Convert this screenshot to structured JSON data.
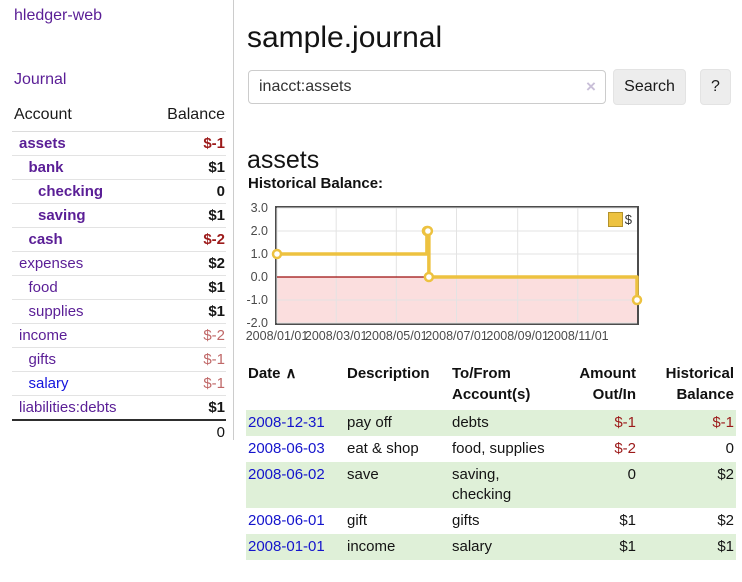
{
  "sidebar": {
    "brand": "hledger-web",
    "nav": {
      "journal": "Journal"
    },
    "accounts_table": {
      "headers": [
        "Account",
        "Balance"
      ],
      "rows": [
        {
          "account": "assets",
          "indent": 0,
          "bold": true,
          "color": "purple",
          "balance": "$-1",
          "balance_class": "neg-strong"
        },
        {
          "account": "bank",
          "indent": 1,
          "bold": true,
          "color": "purple",
          "balance": "$1",
          "balance_class": "pos"
        },
        {
          "account": "checking",
          "indent": 2,
          "bold": true,
          "color": "purple",
          "balance": "0",
          "balance_class": "pos"
        },
        {
          "account": "saving",
          "indent": 2,
          "bold": true,
          "color": "purple",
          "balance": "$1",
          "balance_class": "pos"
        },
        {
          "account": "cash",
          "indent": 1,
          "bold": true,
          "color": "purple",
          "balance": "$-2",
          "balance_class": "neg-strong"
        },
        {
          "account": "expenses",
          "indent": 0,
          "bold": false,
          "color": "purple",
          "balance": "$2",
          "balance_class": "pos"
        },
        {
          "account": "food",
          "indent": 1,
          "bold": false,
          "color": "purple",
          "balance": "$1",
          "balance_class": "pos"
        },
        {
          "account": "supplies",
          "indent": 1,
          "bold": false,
          "color": "purple",
          "balance": "$1",
          "balance_class": "pos"
        },
        {
          "account": "income",
          "indent": 0,
          "bold": false,
          "color": "purple",
          "balance": "$-2",
          "balance_class": "neg-soft"
        },
        {
          "account": "gifts",
          "indent": 1,
          "bold": false,
          "color": "purple",
          "balance": "$-1",
          "balance_class": "neg-soft"
        },
        {
          "account": "salary",
          "indent": 1,
          "bold": false,
          "color": "blue",
          "balance": "$-1",
          "balance_class": "neg-soft"
        },
        {
          "account": "liabilities:debts",
          "indent": 0,
          "bold": false,
          "color": "purple",
          "balance": "$1",
          "balance_class": "pos"
        }
      ],
      "total": "0"
    }
  },
  "header": {
    "title": "sample.journal"
  },
  "search": {
    "value": "inacct:assets",
    "clear_icon": "×",
    "button_label": "Search",
    "help_label": "?"
  },
  "account_page": {
    "heading": "assets",
    "section_label": "Historical Balance:"
  },
  "chart_data": {
    "type": "line",
    "step": true,
    "title": "Historical Balance:",
    "series": [
      {
        "name": "$",
        "points": [
          {
            "date": "2008-01-01",
            "value": 1
          },
          {
            "date": "2008-06-01",
            "value": 2
          },
          {
            "date": "2008-06-02",
            "value": 2
          },
          {
            "date": "2008-06-03",
            "value": 0
          },
          {
            "date": "2008-12-31",
            "value": -1
          }
        ]
      }
    ],
    "xrange": [
      "2008-01-01",
      "2008-12-31"
    ],
    "ylim": [
      -2,
      3
    ],
    "yticks": [
      3,
      2,
      1,
      0,
      -1,
      -2
    ],
    "xticks": [
      {
        "label": "2008/01/01",
        "date": "2008-01-01"
      },
      {
        "label": "2008/03/01",
        "date": "2008-03-01"
      },
      {
        "label": "2008/05/01",
        "date": "2008-05-01"
      },
      {
        "label": "2008/07/01",
        "date": "2008-07-01"
      },
      {
        "label": "2008/09/01",
        "date": "2008-09-01"
      },
      {
        "label": "2008/11/01",
        "date": "2008-11-01"
      }
    ],
    "legend": {
      "label": "$",
      "position": "top-right"
    },
    "grid": true,
    "colors": {
      "series": "#EDC240",
      "marker_fill": "#FFFFFF",
      "negative_fill": "#FBDEDE",
      "zero_line": "#9C0D0D",
      "grid": "#E3E3E3",
      "border": "#4C4C4C"
    }
  },
  "register_table": {
    "sort_icon": "∧",
    "headers": [
      "Date",
      "Description",
      "To/From Account(s)",
      "Amount Out/In",
      "Historical Balance"
    ],
    "rows": [
      {
        "date": "2008-12-31",
        "description": "pay off",
        "accounts": "debts",
        "amount": "$-1",
        "amount_negative": true,
        "balance": "$-1",
        "balance_negative": true
      },
      {
        "date": "2008-06-03",
        "description": "eat & shop",
        "accounts": "food, supplies",
        "amount": "$-2",
        "amount_negative": true,
        "balance": "0",
        "balance_negative": false
      },
      {
        "date": "2008-06-02",
        "description": "save",
        "accounts": "saving, checking",
        "amount": "0",
        "amount_negative": false,
        "balance": "$2",
        "balance_negative": false
      },
      {
        "date": "2008-06-01",
        "description": "gift",
        "accounts": "gifts",
        "amount": "$1",
        "amount_negative": false,
        "balance": "$2",
        "balance_negative": false
      },
      {
        "date": "2008-01-01",
        "description": "income",
        "accounts": "salary",
        "amount": "$1",
        "amount_negative": false,
        "balance": "$1",
        "balance_negative": false
      }
    ]
  }
}
